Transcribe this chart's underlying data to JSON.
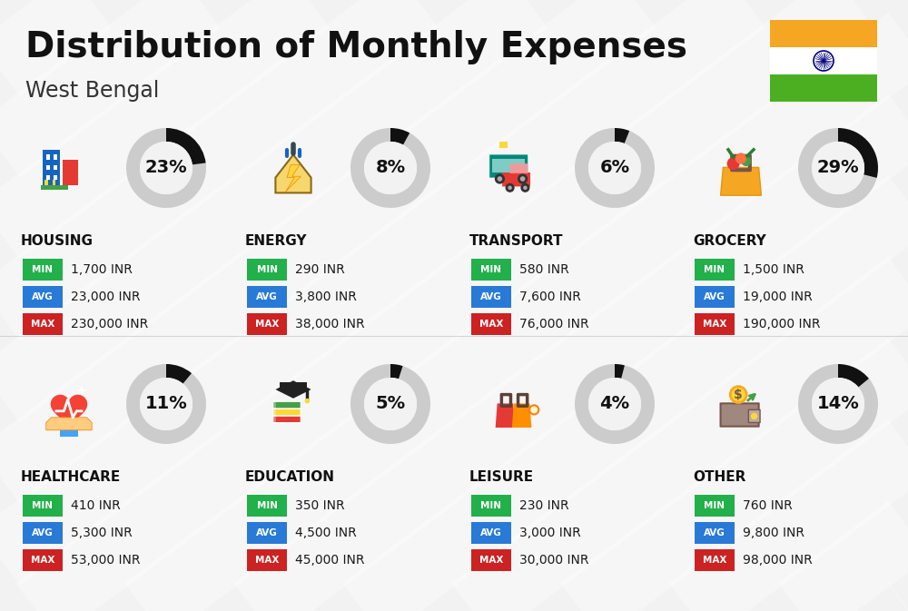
{
  "title": "Distribution of Monthly Expenses",
  "subtitle": "West Bengal",
  "background_color": "#f2f2f2",
  "categories": [
    {
      "name": "HOUSING",
      "pct": 23,
      "min_val": "1,700 INR",
      "avg_val": "23,000 INR",
      "max_val": "230,000 INR",
      "row": 0,
      "col": 0
    },
    {
      "name": "ENERGY",
      "pct": 8,
      "min_val": "290 INR",
      "avg_val": "3,800 INR",
      "max_val": "38,000 INR",
      "row": 0,
      "col": 1
    },
    {
      "name": "TRANSPORT",
      "pct": 6,
      "min_val": "580 INR",
      "avg_val": "7,600 INR",
      "max_val": "76,000 INR",
      "row": 0,
      "col": 2
    },
    {
      "name": "GROCERY",
      "pct": 29,
      "min_val": "1,500 INR",
      "avg_val": "19,000 INR",
      "max_val": "190,000 INR",
      "row": 0,
      "col": 3
    },
    {
      "name": "HEALTHCARE",
      "pct": 11,
      "min_val": "410 INR",
      "avg_val": "5,300 INR",
      "max_val": "53,000 INR",
      "row": 1,
      "col": 0
    },
    {
      "name": "EDUCATION",
      "pct": 5,
      "min_val": "350 INR",
      "avg_val": "4,500 INR",
      "max_val": "45,000 INR",
      "row": 1,
      "col": 1
    },
    {
      "name": "LEISURE",
      "pct": 4,
      "min_val": "230 INR",
      "avg_val": "3,000 INR",
      "max_val": "30,000 INR",
      "row": 1,
      "col": 2
    },
    {
      "name": "OTHER",
      "pct": 14,
      "min_val": "760 INR",
      "avg_val": "9,800 INR",
      "max_val": "98,000 INR",
      "row": 1,
      "col": 3
    }
  ],
  "min_color": "#22b04a",
  "avg_color": "#2979d6",
  "max_color": "#cc2222",
  "value_text_color": "#1a1a1a",
  "category_text_color": "#111111",
  "pct_text_color": "#111111",
  "donut_filled_color": "#111111",
  "donut_empty_color": "#cccccc",
  "india_flag_saffron": "#f5a623",
  "india_flag_white": "#FFFFFF",
  "india_flag_green": "#4caf22"
}
